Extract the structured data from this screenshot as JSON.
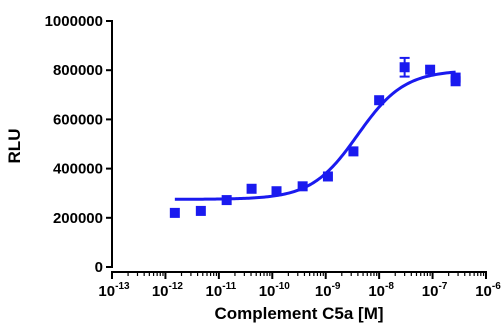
{
  "chart_data": {
    "type": "scatter",
    "title": "",
    "xlabel": "Complement C5a [M]",
    "ylabel": "RLU",
    "x_scale": "log",
    "xlim": [
      1e-13,
      1e-06
    ],
    "ylim": [
      0,
      1000000
    ],
    "x_ticks": [
      1e-13,
      1e-12,
      1e-11,
      1e-10,
      1e-09,
      1e-08,
      1e-07,
      1e-06
    ],
    "x_tick_labels": [
      {
        "base": "10",
        "exp": "-13"
      },
      {
        "base": "10",
        "exp": "-12"
      },
      {
        "base": "10",
        "exp": "-11"
      },
      {
        "base": "10",
        "exp": "-10"
      },
      {
        "base": "10",
        "exp": "-9"
      },
      {
        "base": "10",
        "exp": "-8"
      },
      {
        "base": "10",
        "exp": "-7"
      },
      {
        "base": "10",
        "exp": "-6"
      }
    ],
    "y_ticks": [
      0,
      200000,
      400000,
      600000,
      800000,
      1000000
    ],
    "y_tick_labels": [
      "0",
      "200000",
      "400000",
      "600000",
      "800000",
      "1000000"
    ],
    "grid": false,
    "legend": "none",
    "color": "#1a1aef",
    "points": [
      {
        "x": 1.5e-12,
        "y": 220000
      },
      {
        "x": 4.6e-12,
        "y": 228000
      },
      {
        "x": 1.4e-11,
        "y": 272000
      },
      {
        "x": 4.1e-11,
        "y": 318000
      },
      {
        "x": 1.2e-10,
        "y": 308000
      },
      {
        "x": 3.7e-10,
        "y": 328000
      },
      {
        "x": 1.1e-09,
        "y": 368000
      },
      {
        "x": 3.3e-09,
        "y": 470000
      },
      {
        "x": 1e-08,
        "y": 678000
      },
      {
        "x": 3e-08,
        "y": 812000,
        "err": 38000
      },
      {
        "x": 9e-08,
        "y": 802000
      },
      {
        "x": 2.7e-07,
        "y": 770000
      },
      {
        "x": 2.7e-07,
        "y": 755000
      }
    ],
    "fit": {
      "model": "sigmoidal dose-response",
      "bottom": 275000,
      "top": 800000,
      "log_ec50": -8.4,
      "hill_slope": 1.0
    }
  }
}
